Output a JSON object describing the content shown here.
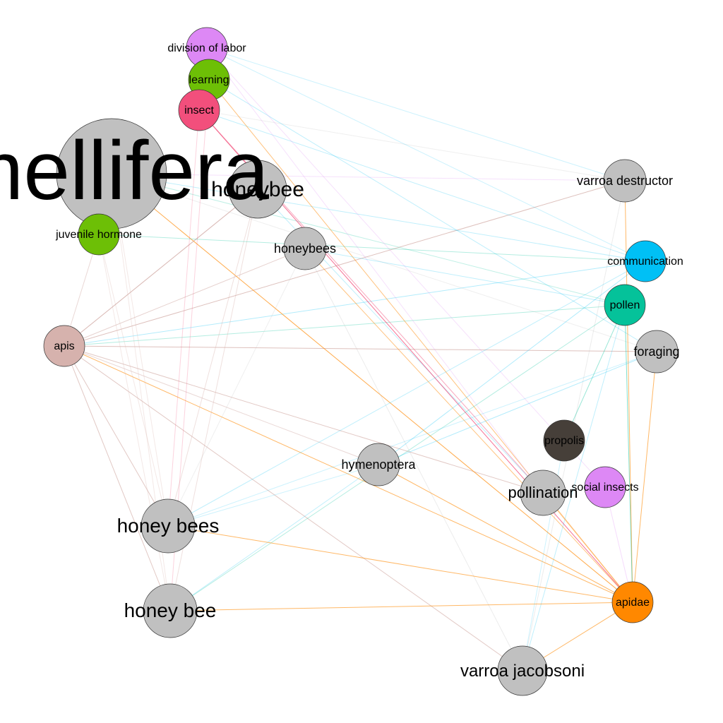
{
  "palette": {
    "gray": "#c0c0c0",
    "pink": "#d6b2ad",
    "violet": "#dd88f5",
    "green": "#6dbf06",
    "red": "#f24f7c",
    "cyan": "#00c0f5",
    "teal": "#05c29a",
    "dark": "#463f39",
    "orange": "#ff8800"
  },
  "nodes": [
    {
      "id": "mellifera",
      "label": "mellifera",
      "color": "#c0c0c0"
    },
    {
      "id": "division_of_labor",
      "label": "division of labor",
      "color": "#dd88f5"
    },
    {
      "id": "learning",
      "label": "learning",
      "color": "#6dbf06"
    },
    {
      "id": "insect",
      "label": "insect",
      "color": "#f24f7c"
    },
    {
      "id": "honeybee",
      "label": "honeybee",
      "color": "#c0c0c0"
    },
    {
      "id": "juvenile_hormone",
      "label": "juvenile hormone",
      "color": "#6dbf06"
    },
    {
      "id": "honeybees",
      "label": "honeybees",
      "color": "#c0c0c0"
    },
    {
      "id": "varroa_destructor",
      "label": "varroa destructor",
      "color": "#c0c0c0"
    },
    {
      "id": "communication",
      "label": "communication",
      "color": "#00c0f5"
    },
    {
      "id": "pollen",
      "label": "pollen",
      "color": "#05c29a"
    },
    {
      "id": "foraging",
      "label": "foraging",
      "color": "#c0c0c0"
    },
    {
      "id": "apis",
      "label": "apis",
      "color": "#d6b2ad"
    },
    {
      "id": "propolis",
      "label": "propolis",
      "color": "#463f39"
    },
    {
      "id": "hymenoptera",
      "label": "hymenoptera",
      "color": "#c0c0c0"
    },
    {
      "id": "pollination",
      "label": "pollination",
      "color": "#c0c0c0"
    },
    {
      "id": "social_insects",
      "label": "social insects",
      "color": "#dd88f5"
    },
    {
      "id": "honey_bees",
      "label": "honey bees",
      "color": "#c0c0c0"
    },
    {
      "id": "honey_bee",
      "label": "honey bee",
      "color": "#c0c0c0"
    },
    {
      "id": "apidae",
      "label": "apidae",
      "color": "#ff8800"
    },
    {
      "id": "varroa_jacobsoni",
      "label": "varroa jacobsoni",
      "color": "#c0c0c0"
    }
  ],
  "edges": [
    [
      "apis",
      "varroa_destructor",
      "#d6b2ad",
      0.8
    ],
    [
      "apis",
      "foraging",
      "#d6b2ad",
      0.8
    ],
    [
      "apis",
      "pollination",
      "#d6b2ad",
      0.7
    ],
    [
      "apis",
      "varroa_jacobsoni",
      "#d6b2ad",
      0.7
    ],
    [
      "apis",
      "honeybee",
      "#d6b2ad",
      0.7
    ],
    [
      "apis",
      "honeybees",
      "#d6b2ad",
      0.6
    ],
    [
      "apis",
      "honey_bees",
      "#d6b2ad",
      0.7
    ],
    [
      "apis",
      "honey_bee",
      "#d6b2ad",
      0.7
    ],
    [
      "apis",
      "hymenoptera",
      "#d6b2ad",
      0.5
    ],
    [
      "apis",
      "apidae",
      "#ff8800",
      0.6
    ],
    [
      "apis",
      "juvenile_hormone",
      "#d6b2ad",
      0.5
    ],
    [
      "apis",
      "communication",
      "#00c0f5",
      0.3
    ],
    [
      "apis",
      "pollen",
      "#05c29a",
      0.3
    ],
    [
      "mellifera",
      "apidae",
      "#ff8800",
      0.7
    ],
    [
      "mellifera",
      "varroa_destructor",
      "#dd88f5",
      0.25
    ],
    [
      "mellifera",
      "communication",
      "#00c0f5",
      0.25
    ],
    [
      "mellifera",
      "honey_bees",
      "#d6b2ad",
      0.3
    ],
    [
      "mellifera",
      "honey_bee",
      "#d6b2ad",
      0.3
    ],
    [
      "mellifera",
      "juvenile_hormone",
      "#6dbf06",
      0.3
    ],
    [
      "mellifera",
      "pollen",
      "#05c29a",
      0.25
    ],
    [
      "mellifera",
      "foraging",
      "#c0c0c0",
      0.25
    ],
    [
      "honeybee",
      "apis",
      "#d6b2ad",
      0.6
    ],
    [
      "honeybee",
      "honey_bees",
      "#d6b2ad",
      0.4
    ],
    [
      "honeybee",
      "honey_bee",
      "#d6b2ad",
      0.4
    ],
    [
      "honeybee",
      "pollination",
      "#00c0f5",
      0.25
    ],
    [
      "honeybees",
      "apidae",
      "#ff8800",
      0.5
    ],
    [
      "honeybees",
      "varroa_jacobsoni",
      "#c0c0c0",
      0.3
    ],
    [
      "insect",
      "apidae",
      "#f24f7c",
      0.8
    ],
    [
      "insect",
      "pollination",
      "#f24f7c",
      0.5
    ],
    [
      "insect",
      "communication",
      "#00c0f5",
      0.25
    ],
    [
      "insect",
      "varroa_destructor",
      "#c0c0c0",
      0.25
    ],
    [
      "insect",
      "honey_bees",
      "#f24f7c",
      0.25
    ],
    [
      "learning",
      "apidae",
      "#ff8800",
      0.5
    ],
    [
      "learning",
      "foraging",
      "#00c0f5",
      0.25
    ],
    [
      "learning",
      "honey_bee",
      "#f24f7c",
      0.25
    ],
    [
      "division_of_labor",
      "varroa_destructor",
      "#00c0f5",
      0.2
    ],
    [
      "division_of_labor",
      "social_insects",
      "#dd88f5",
      0.25
    ],
    [
      "division_of_labor",
      "pollination",
      "#dd88f5",
      0.25
    ],
    [
      "division_of_labor",
      "communication",
      "#00c0f5",
      0.2
    ],
    [
      "juvenile_hormone",
      "communication",
      "#05c29a",
      0.3
    ],
    [
      "juvenile_hormone",
      "honey_bees",
      "#d6b2ad",
      0.3
    ],
    [
      "juvenile_hormone",
      "honey_bee",
      "#d6b2ad",
      0.3
    ],
    [
      "varroa_destructor",
      "apidae",
      "#ff8800",
      0.6
    ],
    [
      "varroa_destructor",
      "varroa_jacobsoni",
      "#c0c0c0",
      0.3
    ],
    [
      "communication",
      "honey_bees",
      "#00c0f5",
      0.25
    ],
    [
      "communication",
      "hymenoptera",
      "#00c0f5",
      0.3
    ],
    [
      "pollen",
      "honey_bee",
      "#05c29a",
      0.3
    ],
    [
      "pollen",
      "propolis",
      "#05c29a",
      0.4
    ],
    [
      "pollen",
      "apidae",
      "#05c29a",
      0.5
    ],
    [
      "pollen",
      "varroa_jacobsoni",
      "#00c0f5",
      0.25
    ],
    [
      "foraging",
      "apidae",
      "#ff8800",
      0.6
    ],
    [
      "foraging",
      "hymenoptera",
      "#00c0f5",
      0.3
    ],
    [
      "foraging",
      "honey_bees",
      "#00c0f5",
      0.2
    ],
    [
      "hymenoptera",
      "apidae",
      "#ff8800",
      0.6
    ],
    [
      "hymenoptera",
      "honey_bee",
      "#00c0f5",
      0.25
    ],
    [
      "hymenoptera",
      "honey_bees",
      "#00c0f5",
      0.2
    ],
    [
      "honey_bees",
      "apidae",
      "#ff8800",
      0.6
    ],
    [
      "honey_bee",
      "apidae",
      "#ff8800",
      0.6
    ],
    [
      "varroa_jacobsoni",
      "apidae",
      "#ff8800",
      0.6
    ],
    [
      "social_insects",
      "apidae",
      "#dd88f5",
      0.3
    ],
    [
      "pollination",
      "apidae",
      "#ff8800",
      0.4
    ],
    [
      "propolis",
      "varroa_jacobsoni",
      "#00c0f5",
      0.2
    ],
    [
      "honeybees",
      "honey_bees",
      "#c0c0c0",
      0.25
    ],
    [
      "honeybees",
      "pollen",
      "#00c0f5",
      0.25
    ]
  ]
}
